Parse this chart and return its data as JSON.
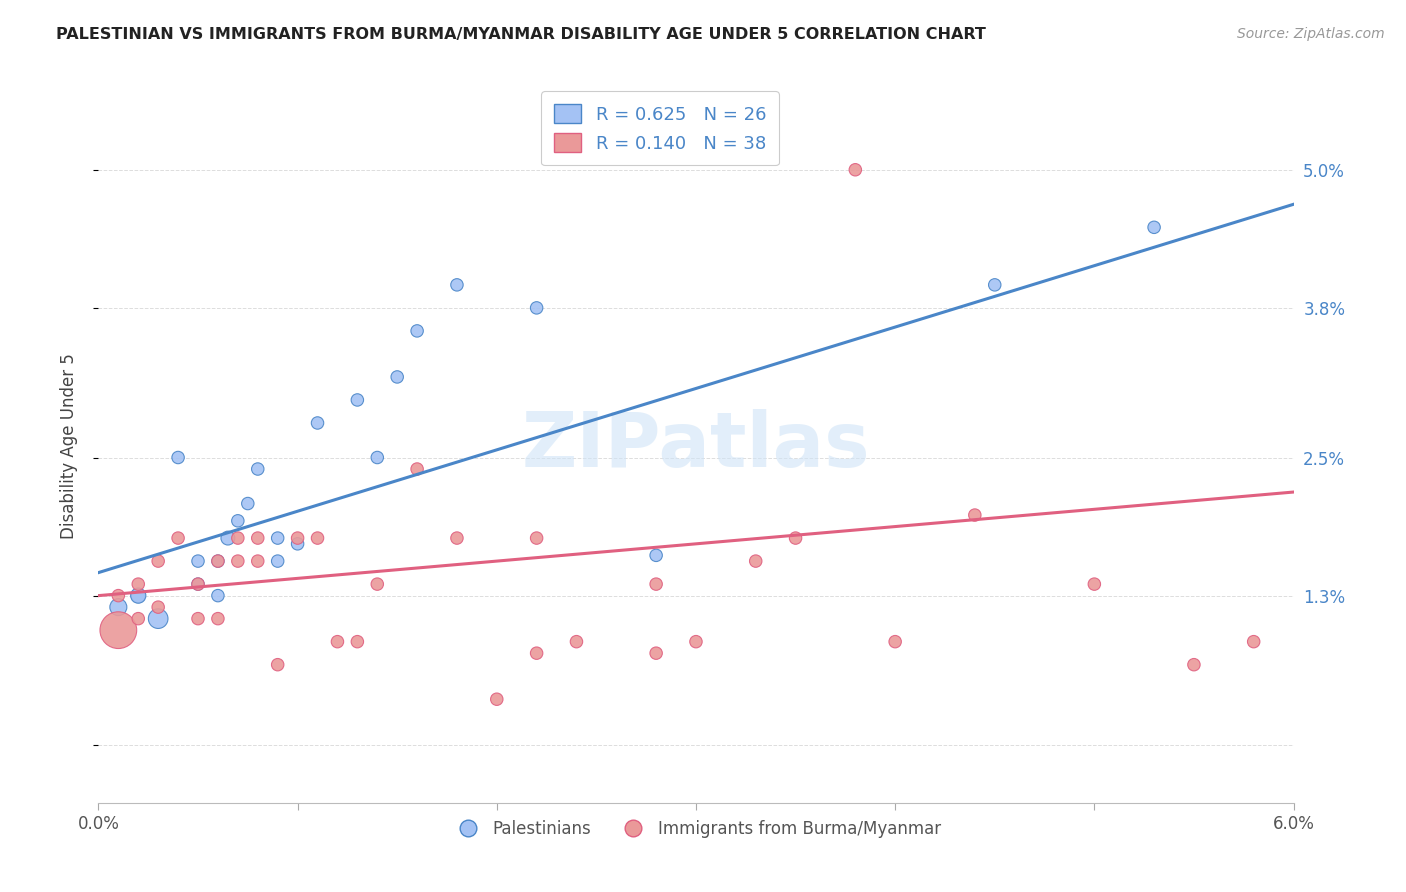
{
  "title": "PALESTINIAN VS IMMIGRANTS FROM BURMA/MYANMAR DISABILITY AGE UNDER 5 CORRELATION CHART",
  "source": "Source: ZipAtlas.com",
  "ylabel": "Disability Age Under 5",
  "xlim": [
    0.0,
    0.06
  ],
  "ylim": [
    -0.005,
    0.057
  ],
  "xtick_values": [
    0.0,
    0.01,
    0.02,
    0.03,
    0.04,
    0.05,
    0.06
  ],
  "xtick_labels": [
    "0.0%",
    "",
    "",
    "",
    "",
    "",
    "6.0%"
  ],
  "ytick_values": [
    0.0,
    0.013,
    0.025,
    0.038,
    0.05
  ],
  "ytick_labels": [
    "",
    "1.3%",
    "2.5%",
    "3.8%",
    "5.0%"
  ],
  "legend_labels": [
    "Palestinians",
    "Immigrants from Burma/Myanmar"
  ],
  "blue_R": "R = 0.625",
  "blue_N": "N = 26",
  "pink_R": "R = 0.140",
  "pink_N": "N = 38",
  "blue_color": "#a4c2f4",
  "pink_color": "#ea9999",
  "blue_line_color": "#4a86c8",
  "pink_line_color": "#e06080",
  "watermark_color": "#d0e4f7",
  "blue_line_x": [
    0.0,
    0.06
  ],
  "blue_line_y": [
    0.015,
    0.047
  ],
  "pink_line_x": [
    0.0,
    0.06
  ],
  "pink_line_y": [
    0.013,
    0.022
  ],
  "blue_points_x": [
    0.001,
    0.002,
    0.002,
    0.003,
    0.004,
    0.005,
    0.005,
    0.006,
    0.006,
    0.0065,
    0.007,
    0.0075,
    0.008,
    0.009,
    0.009,
    0.01,
    0.011,
    0.013,
    0.014,
    0.015,
    0.016,
    0.018,
    0.022,
    0.028,
    0.045,
    0.053
  ],
  "blue_points_y": [
    0.012,
    0.013,
    0.013,
    0.011,
    0.025,
    0.014,
    0.016,
    0.016,
    0.013,
    0.018,
    0.0195,
    0.021,
    0.024,
    0.018,
    0.016,
    0.0175,
    0.028,
    0.03,
    0.025,
    0.032,
    0.036,
    0.04,
    0.038,
    0.0165,
    0.04,
    0.045
  ],
  "blue_sizes": [
    150,
    100,
    120,
    200,
    80,
    80,
    80,
    80,
    80,
    100,
    80,
    80,
    80,
    80,
    80,
    80,
    80,
    80,
    80,
    80,
    80,
    80,
    80,
    80,
    80,
    80
  ],
  "pink_points_x": [
    0.001,
    0.001,
    0.002,
    0.002,
    0.003,
    0.003,
    0.004,
    0.005,
    0.005,
    0.006,
    0.006,
    0.007,
    0.007,
    0.008,
    0.008,
    0.009,
    0.01,
    0.011,
    0.012,
    0.013,
    0.014,
    0.016,
    0.018,
    0.02,
    0.022,
    0.024,
    0.028,
    0.03,
    0.033,
    0.035,
    0.038,
    0.04,
    0.044,
    0.05,
    0.055,
    0.058,
    0.022,
    0.028
  ],
  "pink_points_y": [
    0.01,
    0.013,
    0.011,
    0.014,
    0.012,
    0.016,
    0.018,
    0.014,
    0.011,
    0.016,
    0.011,
    0.018,
    0.016,
    0.018,
    0.016,
    0.007,
    0.018,
    0.018,
    0.009,
    0.009,
    0.014,
    0.024,
    0.018,
    0.004,
    0.018,
    0.009,
    0.014,
    0.009,
    0.016,
    0.018,
    0.05,
    0.009,
    0.02,
    0.014,
    0.007,
    0.009,
    0.008,
    0.008
  ],
  "pink_sizes": [
    700,
    80,
    80,
    80,
    80,
    80,
    80,
    80,
    80,
    80,
    80,
    80,
    80,
    80,
    80,
    80,
    80,
    80,
    80,
    80,
    80,
    80,
    80,
    80,
    80,
    80,
    80,
    80,
    80,
    80,
    80,
    80,
    80,
    80,
    80,
    80,
    80,
    80
  ]
}
